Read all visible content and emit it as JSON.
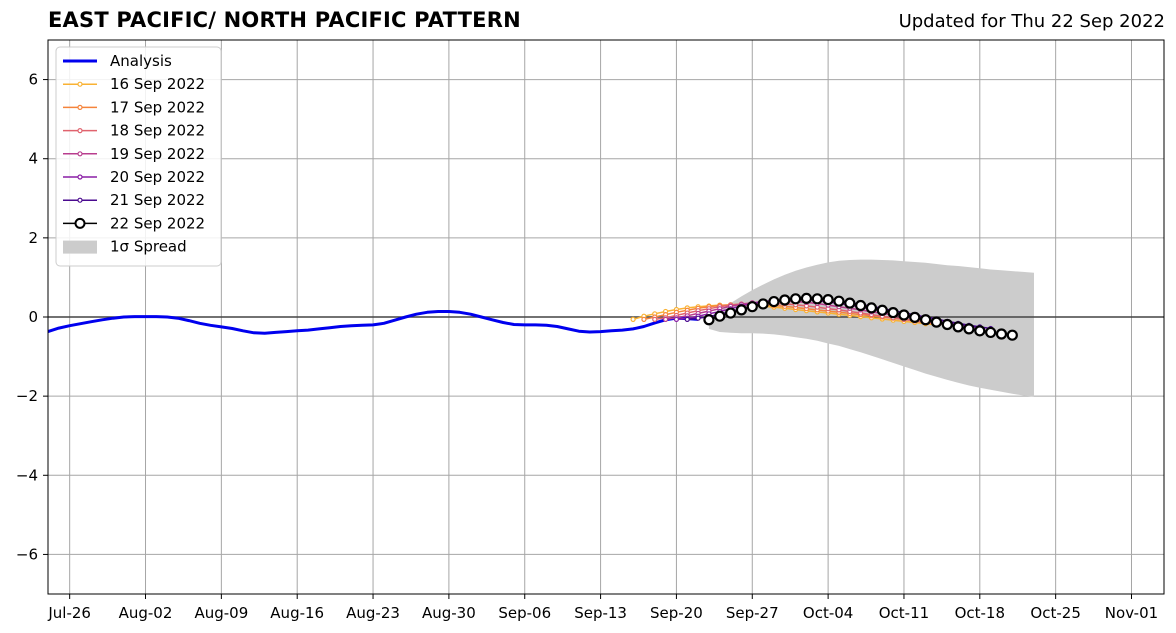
{
  "header": {
    "title": "EAST PACIFIC/ NORTH PACIFIC PATTERN",
    "updated": "Updated for Thu 22 Sep 2022"
  },
  "chart_data": {
    "type": "line",
    "title": "EAST PACIFIC/ NORTH PACIFIC PATTERN",
    "subtitle": "Updated for Thu 22 Sep 2022",
    "xlabel": "",
    "ylabel": "",
    "xlim": [
      "2022-07-24",
      "2022-11-04"
    ],
    "ylim": [
      -7,
      7
    ],
    "grid": true,
    "legend_position": "top-left",
    "x_ticks": [
      {
        "date": "2022-07-26",
        "label": "Jul-26"
      },
      {
        "date": "2022-08-02",
        "label": "Aug-02"
      },
      {
        "date": "2022-08-09",
        "label": "Aug-09"
      },
      {
        "date": "2022-08-16",
        "label": "Aug-16"
      },
      {
        "date": "2022-08-23",
        "label": "Aug-23"
      },
      {
        "date": "2022-08-30",
        "label": "Aug-30"
      },
      {
        "date": "2022-09-06",
        "label": "Sep-06"
      },
      {
        "date": "2022-09-13",
        "label": "Sep-13"
      },
      {
        "date": "2022-09-20",
        "label": "Sep-20"
      },
      {
        "date": "2022-09-27",
        "label": "Sep-27"
      },
      {
        "date": "2022-10-04",
        "label": "Oct-04"
      },
      {
        "date": "2022-10-11",
        "label": "Oct-11"
      },
      {
        "date": "2022-10-18",
        "label": "Oct-18"
      },
      {
        "date": "2022-10-25",
        "label": "Oct-25"
      },
      {
        "date": "2022-11-01",
        "label": "Nov-01"
      }
    ],
    "y_ticks": [
      {
        "value": 6,
        "label": "6"
      },
      {
        "value": 4,
        "label": "4"
      },
      {
        "value": 2,
        "label": "2"
      },
      {
        "value": 0,
        "label": "0"
      },
      {
        "value": -2,
        "label": "−2"
      },
      {
        "value": -4,
        "label": "−4"
      },
      {
        "value": -6,
        "label": "−6"
      }
    ],
    "series": [
      {
        "name": "Analysis",
        "kind": "analysis",
        "color": "#0000ee",
        "start": "2022-07-24",
        "values": [
          -0.37,
          -0.28,
          -0.22,
          -0.17,
          -0.12,
          -0.07,
          -0.03,
          0.0,
          0.01,
          0.01,
          0.01,
          0.0,
          -0.03,
          -0.09,
          -0.16,
          -0.21,
          -0.25,
          -0.29,
          -0.35,
          -0.4,
          -0.41,
          -0.39,
          -0.37,
          -0.35,
          -0.33,
          -0.3,
          -0.27,
          -0.24,
          -0.22,
          -0.21,
          -0.2,
          -0.16,
          -0.08,
          0.0,
          0.07,
          0.12,
          0.14,
          0.14,
          0.12,
          0.07,
          0.0,
          -0.07,
          -0.14,
          -0.19,
          -0.2,
          -0.2,
          -0.21,
          -0.24,
          -0.3,
          -0.36,
          -0.38,
          -0.37,
          -0.35,
          -0.33,
          -0.3,
          -0.24,
          -0.15,
          -0.07,
          -0.03,
          -0.04,
          -0.06
        ]
      },
      {
        "name": "16 Sep 2022",
        "kind": "forecast",
        "color": "#f9b233",
        "start": "2022-09-16",
        "values": [
          -0.06,
          0.02,
          0.08,
          0.14,
          0.19,
          0.23,
          0.26,
          0.28,
          0.3,
          0.3,
          0.3,
          0.29,
          0.27,
          0.25,
          0.22,
          0.19,
          0.16,
          0.13,
          0.1,
          0.07,
          0.04,
          0.01,
          -0.02,
          -0.05,
          -0.08,
          -0.11,
          -0.14,
          -0.17,
          -0.2
        ]
      },
      {
        "name": "17 Sep 2022",
        "kind": "forecast",
        "color": "#f5843c",
        "start": "2022-09-17",
        "values": [
          -0.06,
          0.0,
          0.06,
          0.12,
          0.17,
          0.22,
          0.26,
          0.29,
          0.31,
          0.32,
          0.32,
          0.31,
          0.29,
          0.27,
          0.24,
          0.21,
          0.18,
          0.15,
          0.12,
          0.09,
          0.06,
          0.03,
          0.0,
          -0.03,
          -0.06,
          -0.09,
          -0.12,
          -0.15,
          -0.18
        ]
      },
      {
        "name": "18 Sep 2022",
        "kind": "forecast",
        "color": "#e0636e",
        "start": "2022-09-18",
        "values": [
          -0.06,
          -0.02,
          0.04,
          0.1,
          0.16,
          0.21,
          0.26,
          0.3,
          0.33,
          0.35,
          0.35,
          0.34,
          0.33,
          0.31,
          0.28,
          0.25,
          0.21,
          0.18,
          0.14,
          0.1,
          0.06,
          0.02,
          -0.02,
          -0.06,
          -0.1,
          -0.14,
          -0.17,
          -0.2,
          -0.23
        ]
      },
      {
        "name": "19 Sep 2022",
        "kind": "forecast",
        "color": "#b83d8e",
        "start": "2022-09-19",
        "values": [
          -0.06,
          -0.02,
          0.03,
          0.09,
          0.15,
          0.21,
          0.27,
          0.32,
          0.36,
          0.39,
          0.4,
          0.4,
          0.39,
          0.37,
          0.34,
          0.3,
          0.26,
          0.22,
          0.18,
          0.13,
          0.09,
          0.05,
          0.01,
          -0.04,
          -0.08,
          -0.12,
          -0.16,
          -0.2,
          -0.23
        ]
      },
      {
        "name": "20 Sep 2022",
        "kind": "forecast",
        "color": "#8a1ea5",
        "start": "2022-09-20",
        "values": [
          -0.06,
          -0.03,
          0.02,
          0.08,
          0.14,
          0.21,
          0.28,
          0.34,
          0.39,
          0.42,
          0.44,
          0.44,
          0.43,
          0.41,
          0.38,
          0.34,
          0.3,
          0.25,
          0.2,
          0.15,
          0.1,
          0.05,
          0.0,
          -0.05,
          -0.1,
          -0.15,
          -0.19,
          -0.23,
          -0.27
        ]
      },
      {
        "name": "21 Sep 2022",
        "kind": "forecast",
        "color": "#4a0a8f",
        "start": "2022-09-21",
        "values": [
          -0.06,
          -0.03,
          0.01,
          0.07,
          0.14,
          0.21,
          0.28,
          0.35,
          0.4,
          0.44,
          0.46,
          0.47,
          0.46,
          0.44,
          0.41,
          0.37,
          0.32,
          0.27,
          0.22,
          0.16,
          0.11,
          0.05,
          0.0,
          -0.05,
          -0.11,
          -0.16,
          -0.21,
          -0.25,
          -0.29
        ]
      },
      {
        "name": "22 Sep 2022",
        "kind": "latest",
        "color": "#000000",
        "start": "2022-09-23",
        "values": [
          -0.07,
          0.02,
          0.1,
          0.18,
          0.26,
          0.33,
          0.39,
          0.43,
          0.46,
          0.47,
          0.46,
          0.44,
          0.4,
          0.35,
          0.29,
          0.23,
          0.17,
          0.11,
          0.05,
          -0.01,
          -0.07,
          -0.13,
          -0.19,
          -0.25,
          -0.3,
          -0.35,
          -0.39,
          -0.43,
          -0.46
        ]
      }
    ],
    "spread": {
      "name": "1σ Spread",
      "color": "#cccccc",
      "start": "2022-09-23",
      "upper": [
        -0.05,
        0.17,
        0.35,
        0.52,
        0.68,
        0.82,
        0.95,
        1.07,
        1.17,
        1.25,
        1.32,
        1.38,
        1.42,
        1.44,
        1.45,
        1.45,
        1.44,
        1.43,
        1.41,
        1.39,
        1.37,
        1.34,
        1.31,
        1.29,
        1.26,
        1.23,
        1.2,
        1.18,
        1.16,
        1.14,
        1.12
      ],
      "lower": [
        -0.3,
        -0.38,
        -0.4,
        -0.41,
        -0.41,
        -0.42,
        -0.44,
        -0.47,
        -0.51,
        -0.55,
        -0.6,
        -0.67,
        -0.73,
        -0.81,
        -0.89,
        -0.98,
        -1.07,
        -1.16,
        -1.25,
        -1.34,
        -1.43,
        -1.51,
        -1.59,
        -1.66,
        -1.73,
        -1.79,
        -1.84,
        -1.89,
        -1.94,
        -1.98,
        -2.02
      ]
    }
  }
}
